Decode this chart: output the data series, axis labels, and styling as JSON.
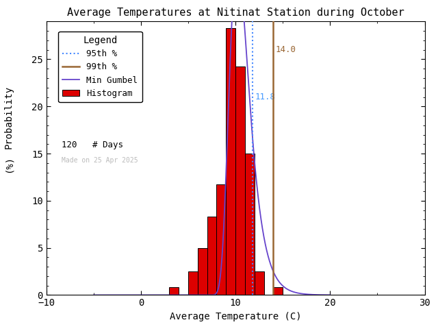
{
  "title": "Average Temperatures at Nitinat Station during October",
  "xlabel": "Average Temperature (C)",
  "ylabel_top": "Probability",
  "ylabel_bottom": "(%)",
  "xlim": [
    -10,
    30
  ],
  "ylim": [
    0,
    29
  ],
  "xticks": [
    -10,
    0,
    10,
    20,
    30
  ],
  "yticks": [
    0,
    5,
    10,
    15,
    20,
    25
  ],
  "hist_bins": [
    3,
    4,
    5,
    6,
    7,
    8,
    9,
    10,
    11,
    12,
    13,
    14,
    15
  ],
  "hist_values": [
    0.83,
    0.0,
    2.5,
    5.0,
    8.3,
    11.7,
    28.3,
    24.2,
    15.0,
    2.5,
    0.0,
    0.83
  ],
  "bar_color": "#dd0000",
  "bar_edge_color": "#000000",
  "percentile_95": 11.8,
  "percentile_99": 14.0,
  "n_days": 120,
  "gumbel_mu": 10.2,
  "gumbel_beta": 1.05,
  "line_95_color": "#4488ff",
  "line_99_color": "#996633",
  "gumbel_color": "#6644cc",
  "annotation_date": "Made on 25 Apr 2025",
  "annotation_color": "#bbbbbb",
  "legend_title": "Legend",
  "bg_color": "#ffffff",
  "p95_label": "11.8",
  "p99_label": "14.0",
  "p95_text_color": "#4499ff",
  "p99_text_color": "#996633"
}
